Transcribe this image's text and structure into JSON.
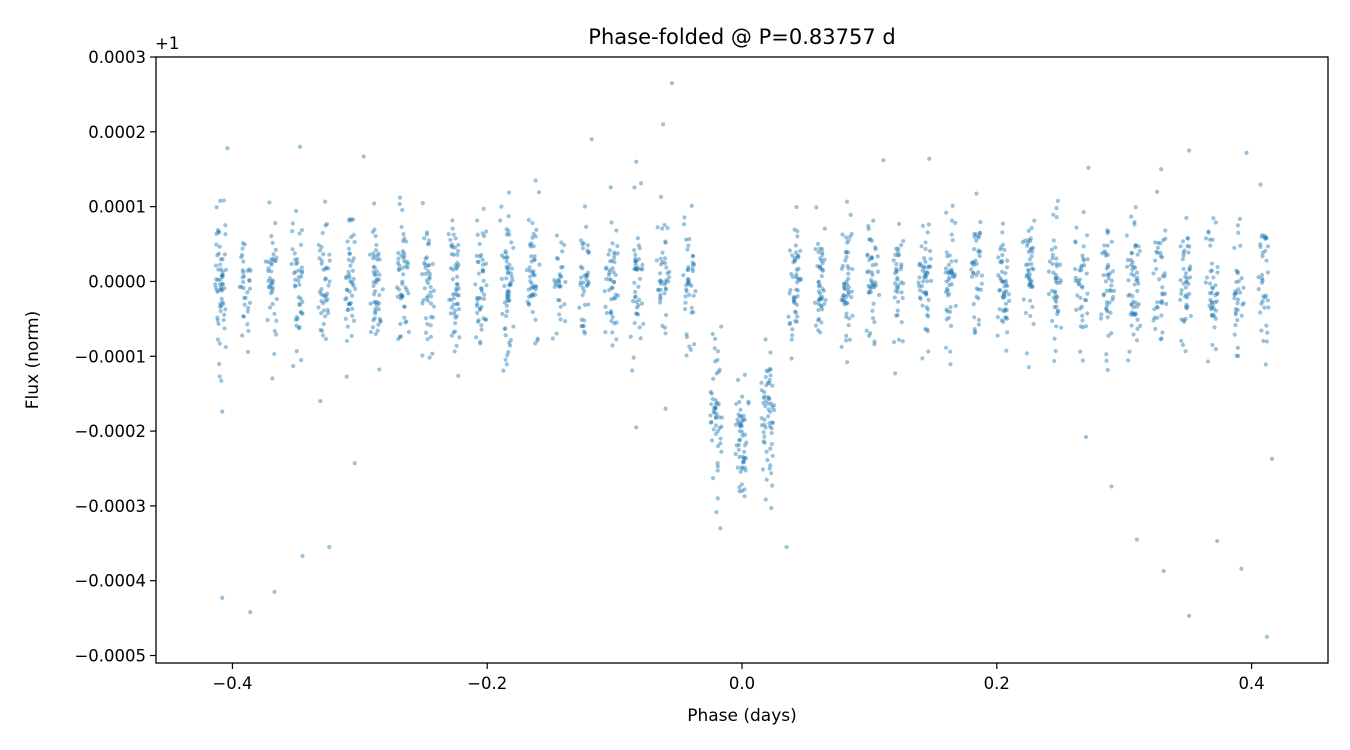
{
  "chart_data": {
    "type": "scatter",
    "title": "Phase-folded @ P=0.83757 d",
    "xlabel": "Phase (days)",
    "ylabel": "Flux (norm)",
    "y_offset_label": "+1",
    "xlim": [
      -0.46,
      0.46
    ],
    "ylim": [
      -0.00051,
      0.0003
    ],
    "x_ticks": [
      -0.4,
      -0.2,
      0.0,
      0.2,
      0.4
    ],
    "x_tick_labels": [
      "−0.4",
      "−0.2",
      "0.0",
      "0.2",
      "0.4"
    ],
    "y_ticks": [
      0.0003,
      0.0002,
      0.0001,
      0.0,
      -0.0001,
      -0.0002,
      -0.0003,
      -0.0004,
      -0.0005
    ],
    "y_tick_labels": [
      "0.0003",
      "0.0002",
      "0.0001",
      "0.0000",
      "−0.0001",
      "−0.0002",
      "−0.0003",
      "−0.0004",
      "−0.0005"
    ],
    "grid": false,
    "legend": "none",
    "point_color": "#1f77b4",
    "point_alpha": 0.45,
    "x_range": [
      -0.418,
      0.418
    ],
    "transit_depth": -0.00021,
    "transit_half_width": 0.04,
    "scatter_std": 4.5e-05,
    "n_points": 1900,
    "series": [
      {
        "points": [
          [
            -0.408,
            -0.000423
          ],
          [
            -0.386,
            -0.000442
          ],
          [
            -0.367,
            -0.000415
          ],
          [
            -0.345,
            -0.000367
          ],
          [
            -0.324,
            -0.000355
          ],
          [
            -0.304,
            -0.000243
          ],
          [
            -0.404,
            0.000178
          ],
          [
            -0.347,
            0.00018
          ],
          [
            -0.297,
            0.000167
          ],
          [
            -0.055,
            0.000265
          ],
          [
            -0.062,
            0.00021
          ],
          [
            -0.118,
            0.00019
          ],
          [
            -0.083,
            0.00016
          ],
          [
            -0.017,
            -0.00033
          ],
          [
            -0.019,
            -0.00029
          ],
          [
            0.002,
            -0.000278
          ],
          [
            0.023,
            -0.000303
          ],
          [
            0.035,
            -0.000355
          ],
          [
            0.111,
            0.000162
          ],
          [
            0.147,
            0.000164
          ],
          [
            0.272,
            0.000152
          ],
          [
            0.351,
            0.000175
          ],
          [
            0.396,
            0.000172
          ],
          [
            0.329,
            0.00015
          ],
          [
            0.27,
            -0.000208
          ],
          [
            0.29,
            -0.000274
          ],
          [
            0.31,
            -0.000345
          ],
          [
            0.331,
            -0.000387
          ],
          [
            0.351,
            -0.000447
          ],
          [
            0.373,
            -0.000347
          ],
          [
            0.392,
            -0.000384
          ],
          [
            0.412,
            -0.000475
          ],
          [
            0.416,
            -0.000237
          ],
          [
            -0.083,
            -0.000195
          ],
          [
            -0.06,
            -0.00017
          ],
          [
            -0.331,
            -0.00016
          ],
          [
            -0.408,
            -0.000174
          ],
          [
            -0.41,
            -0.000127
          ]
        ]
      }
    ]
  }
}
